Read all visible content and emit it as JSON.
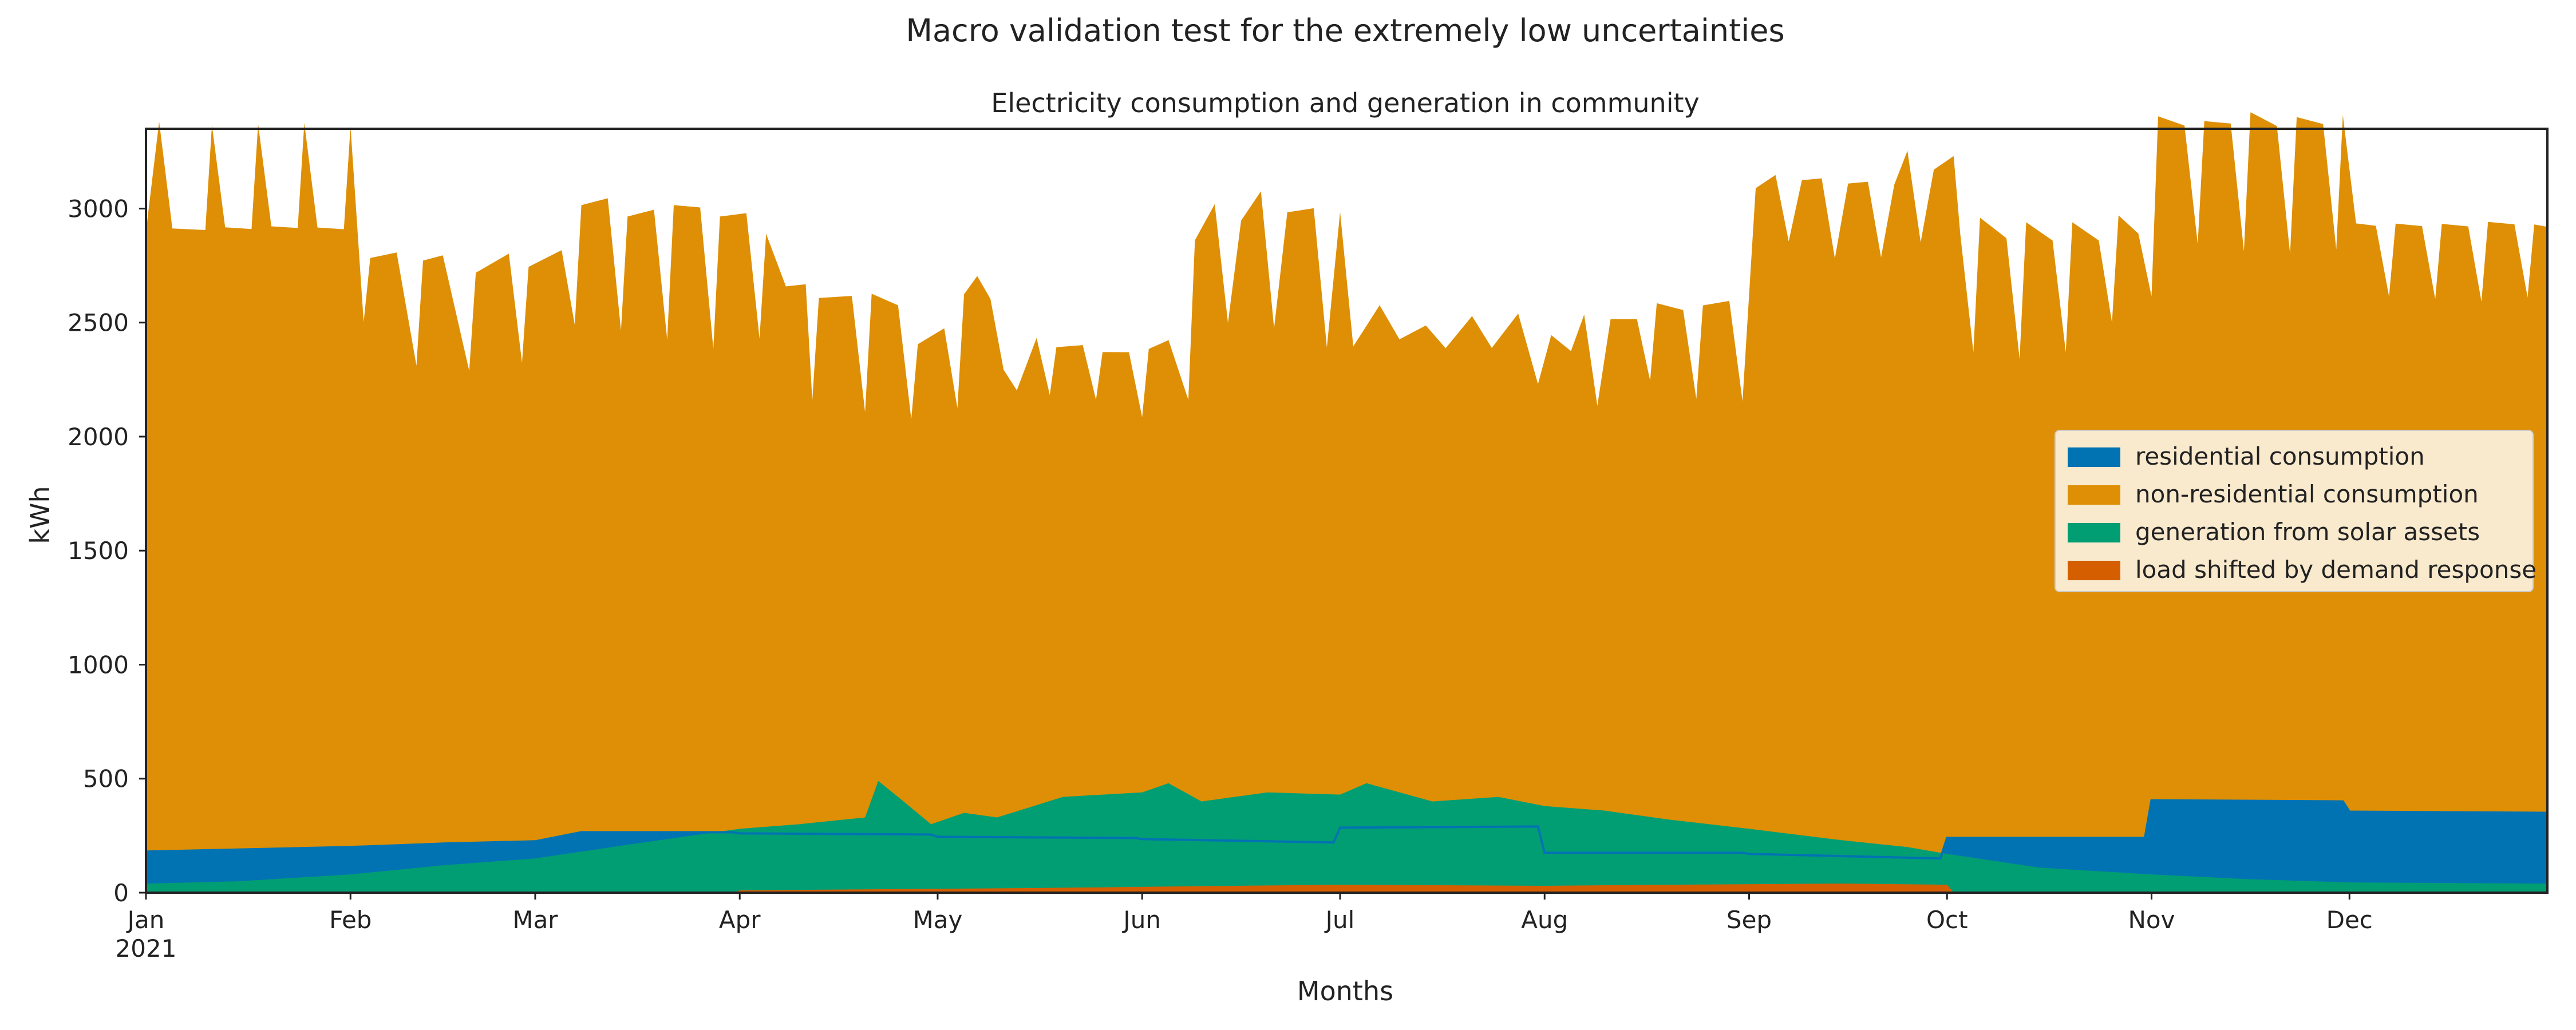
{
  "suptitle": "Macro validation test for the extremely low uncertainties",
  "chart_data": {
    "type": "area",
    "title": "Electricity consumption and generation in community",
    "xlabel": "Months",
    "ylabel": "kWh",
    "x_range": [
      "2021-01-01",
      "2021-12-31"
    ],
    "ylim": [
      0,
      3350
    ],
    "xticks": [
      {
        "date": "2021-01-01",
        "label": "Jan",
        "sublabel": "2021"
      },
      {
        "date": "2021-02-01",
        "label": "Feb"
      },
      {
        "date": "2021-03-01",
        "label": "Mar"
      },
      {
        "date": "2021-04-01",
        "label": "Apr"
      },
      {
        "date": "2021-05-01",
        "label": "May"
      },
      {
        "date": "2021-06-01",
        "label": "Jun"
      },
      {
        "date": "2021-07-01",
        "label": "Jul"
      },
      {
        "date": "2021-08-01",
        "label": "Aug"
      },
      {
        "date": "2021-09-01",
        "label": "Sep"
      },
      {
        "date": "2021-10-01",
        "label": "Oct"
      },
      {
        "date": "2021-11-01",
        "label": "Nov"
      },
      {
        "date": "2021-12-01",
        "label": "Dec"
      }
    ],
    "yticks": [
      0,
      500,
      1000,
      1500,
      2000,
      2500,
      3000
    ],
    "grid": false,
    "legend": {
      "placement": "right"
    },
    "series": [
      {
        "name": "residential consumption",
        "color": "#0173b2",
        "stacking": "base",
        "points": [
          [
            "2021-01-01",
            180
          ],
          [
            "2021-02-01",
            200
          ],
          [
            "2021-02-15",
            215
          ],
          [
            "2021-03-01",
            225
          ],
          [
            "2021-03-08",
            265
          ],
          [
            "2021-03-31",
            265
          ],
          [
            "2021-04-01",
            260
          ],
          [
            "2021-04-30",
            255
          ],
          [
            "2021-05-01",
            245
          ],
          [
            "2021-05-31",
            240
          ],
          [
            "2021-06-01",
            235
          ],
          [
            "2021-06-30",
            220
          ],
          [
            "2021-07-01",
            285
          ],
          [
            "2021-07-31",
            290
          ],
          [
            "2021-08-01",
            175
          ],
          [
            "2021-08-31",
            175
          ],
          [
            "2021-09-01",
            170
          ],
          [
            "2021-09-30",
            150
          ],
          [
            "2021-10-01",
            240
          ],
          [
            "2021-10-31",
            240
          ],
          [
            "2021-11-01",
            405
          ],
          [
            "2021-11-30",
            400
          ],
          [
            "2021-12-01",
            355
          ],
          [
            "2021-12-31",
            350
          ]
        ]
      },
      {
        "name": "non-residential consumption",
        "color": "#de8f05",
        "stacking": "total_on_top",
        "points": [
          [
            "2021-01-01",
            2720
          ],
          [
            "2021-01-03",
            3200
          ],
          [
            "2021-01-05",
            2730
          ],
          [
            "2021-01-10",
            2720
          ],
          [
            "2021-01-11",
            3180
          ],
          [
            "2021-01-13",
            2730
          ],
          [
            "2021-01-17",
            2720
          ],
          [
            "2021-01-18",
            3180
          ],
          [
            "2021-01-20",
            2730
          ],
          [
            "2021-01-24",
            2720
          ],
          [
            "2021-01-25",
            3180
          ],
          [
            "2021-01-27",
            2720
          ],
          [
            "2021-01-31",
            2710
          ],
          [
            "2021-02-01",
            3160
          ],
          [
            "2021-02-03",
            2300
          ],
          [
            "2021-02-04",
            2580
          ],
          [
            "2021-02-08",
            2600
          ],
          [
            "2021-02-11",
            2100
          ],
          [
            "2021-02-12",
            2560
          ],
          [
            "2021-02-15",
            2580
          ],
          [
            "2021-02-19",
            2070
          ],
          [
            "2021-02-20",
            2500
          ],
          [
            "2021-02-25",
            2580
          ],
          [
            "2021-02-27",
            2100
          ],
          [
            "2021-02-28",
            2520
          ],
          [
            "2021-03-05",
            2570
          ],
          [
            "2021-03-07",
            2230
          ],
          [
            "2021-03-08",
            2750
          ],
          [
            "2021-03-12",
            2780
          ],
          [
            "2021-03-14",
            2200
          ],
          [
            "2021-03-15",
            2700
          ],
          [
            "2021-03-19",
            2730
          ],
          [
            "2021-03-21",
            2160
          ],
          [
            "2021-03-22",
            2750
          ],
          [
            "2021-03-26",
            2740
          ],
          [
            "2021-03-28",
            2120
          ],
          [
            "2021-03-29",
            2700
          ],
          [
            "2021-04-02",
            2720
          ],
          [
            "2021-04-04",
            2170
          ],
          [
            "2021-04-05",
            2630
          ],
          [
            "2021-04-08",
            2400
          ],
          [
            "2021-04-11",
            2410
          ],
          [
            "2021-04-12",
            1900
          ],
          [
            "2021-04-13",
            2350
          ],
          [
            "2021-04-18",
            2360
          ],
          [
            "2021-04-20",
            1850
          ],
          [
            "2021-04-21",
            2370
          ],
          [
            "2021-04-25",
            2320
          ],
          [
            "2021-04-27",
            1820
          ],
          [
            "2021-04-28",
            2150
          ],
          [
            "2021-05-02",
            2230
          ],
          [
            "2021-05-04",
            1880
          ],
          [
            "2021-05-05",
            2380
          ],
          [
            "2021-05-07",
            2460
          ],
          [
            "2021-05-09",
            2360
          ],
          [
            "2021-05-11",
            2050
          ],
          [
            "2021-05-13",
            1960
          ],
          [
            "2021-05-16",
            2190
          ],
          [
            "2021-05-18",
            1940
          ],
          [
            "2021-05-19",
            2150
          ],
          [
            "2021-05-23",
            2160
          ],
          [
            "2021-05-25",
            1920
          ],
          [
            "2021-05-26",
            2130
          ],
          [
            "2021-05-30",
            2130
          ],
          [
            "2021-06-01",
            1850
          ],
          [
            "2021-06-02",
            2150
          ],
          [
            "2021-06-05",
            2190
          ],
          [
            "2021-06-08",
            1930
          ],
          [
            "2021-06-09",
            2630
          ],
          [
            "2021-06-12",
            2790
          ],
          [
            "2021-06-14",
            2270
          ],
          [
            "2021-06-16",
            2720
          ],
          [
            "2021-06-19",
            2850
          ],
          [
            "2021-06-21",
            2250
          ],
          [
            "2021-06-23",
            2760
          ],
          [
            "2021-06-27",
            2780
          ],
          [
            "2021-06-29",
            2170
          ],
          [
            "2021-07-01",
            2700
          ],
          [
            "2021-07-03",
            2110
          ],
          [
            "2021-07-07",
            2290
          ],
          [
            "2021-07-10",
            2140
          ],
          [
            "2021-07-14",
            2200
          ],
          [
            "2021-07-17",
            2100
          ],
          [
            "2021-07-21",
            2240
          ],
          [
            "2021-07-24",
            2100
          ],
          [
            "2021-07-28",
            2250
          ],
          [
            "2021-07-31",
            1940
          ],
          [
            "2021-08-02",
            2270
          ],
          [
            "2021-08-05",
            2200
          ],
          [
            "2021-08-07",
            2360
          ],
          [
            "2021-08-09",
            1960
          ],
          [
            "2021-08-11",
            2340
          ],
          [
            "2021-08-15",
            2340
          ],
          [
            "2021-08-17",
            2070
          ],
          [
            "2021-08-18",
            2410
          ],
          [
            "2021-08-22",
            2380
          ],
          [
            "2021-08-24",
            1990
          ],
          [
            "2021-08-25",
            2400
          ],
          [
            "2021-08-29",
            2420
          ],
          [
            "2021-08-31",
            1980
          ],
          [
            "2021-09-02",
            2920
          ],
          [
            "2021-09-05",
            2980
          ],
          [
            "2021-09-07",
            2690
          ],
          [
            "2021-09-09",
            2960
          ],
          [
            "2021-09-12",
            2970
          ],
          [
            "2021-09-14",
            2620
          ],
          [
            "2021-09-16",
            2950
          ],
          [
            "2021-09-19",
            2960
          ],
          [
            "2021-09-21",
            2630
          ],
          [
            "2021-09-23",
            2950
          ],
          [
            "2021-09-25",
            3100
          ],
          [
            "2021-09-27",
            2700
          ],
          [
            "2021-09-29",
            3020
          ],
          [
            "2021-10-02",
            2990
          ],
          [
            "2021-10-03",
            2650
          ],
          [
            "2021-10-05",
            2130
          ],
          [
            "2021-10-06",
            2720
          ],
          [
            "2021-10-10",
            2630
          ],
          [
            "2021-10-12",
            2100
          ],
          [
            "2021-10-13",
            2700
          ],
          [
            "2021-10-17",
            2620
          ],
          [
            "2021-10-19",
            2130
          ],
          [
            "2021-10-20",
            2700
          ],
          [
            "2021-10-24",
            2620
          ],
          [
            "2021-10-26",
            2260
          ],
          [
            "2021-10-27",
            2730
          ],
          [
            "2021-10-30",
            2650
          ],
          [
            "2021-11-01",
            2210
          ],
          [
            "2021-11-02",
            3000
          ],
          [
            "2021-11-06",
            2960
          ],
          [
            "2021-11-08",
            2440
          ],
          [
            "2021-11-09",
            2980
          ],
          [
            "2021-11-13",
            2970
          ],
          [
            "2021-11-15",
            2410
          ],
          [
            "2021-11-16",
            3020
          ],
          [
            "2021-11-20",
            2960
          ],
          [
            "2021-11-22",
            2400
          ],
          [
            "2021-11-23",
            3000
          ],
          [
            "2021-11-27",
            2970
          ],
          [
            "2021-11-29",
            2420
          ],
          [
            "2021-11-30",
            3010
          ],
          [
            "2021-12-02",
            2580
          ],
          [
            "2021-12-05",
            2570
          ],
          [
            "2021-12-07",
            2260
          ],
          [
            "2021-12-08",
            2580
          ],
          [
            "2021-12-12",
            2570
          ],
          [
            "2021-12-14",
            2250
          ],
          [
            "2021-12-15",
            2580
          ],
          [
            "2021-12-19",
            2570
          ],
          [
            "2021-12-21",
            2240
          ],
          [
            "2021-12-22",
            2590
          ],
          [
            "2021-12-26",
            2580
          ],
          [
            "2021-12-28",
            2260
          ],
          [
            "2021-12-29",
            2580
          ],
          [
            "2021-12-31",
            2570
          ]
        ]
      },
      {
        "name": "generation from solar assets",
        "color": "#029e73",
        "stacking": "from_zero",
        "points": [
          [
            "2021-01-01",
            40
          ],
          [
            "2021-01-15",
            50
          ],
          [
            "2021-02-01",
            80
          ],
          [
            "2021-02-15",
            120
          ],
          [
            "2021-03-01",
            150
          ],
          [
            "2021-03-15",
            210
          ],
          [
            "2021-04-01",
            280
          ],
          [
            "2021-04-10",
            300
          ],
          [
            "2021-04-20",
            330
          ],
          [
            "2021-04-22",
            490
          ],
          [
            "2021-04-25",
            420
          ],
          [
            "2021-04-30",
            300
          ],
          [
            "2021-05-05",
            350
          ],
          [
            "2021-05-10",
            330
          ],
          [
            "2021-05-20",
            420
          ],
          [
            "2021-06-01",
            440
          ],
          [
            "2021-06-05",
            480
          ],
          [
            "2021-06-10",
            400
          ],
          [
            "2021-06-20",
            440
          ],
          [
            "2021-07-01",
            430
          ],
          [
            "2021-07-05",
            480
          ],
          [
            "2021-07-15",
            400
          ],
          [
            "2021-07-25",
            420
          ],
          [
            "2021-08-01",
            380
          ],
          [
            "2021-08-10",
            360
          ],
          [
            "2021-08-20",
            320
          ],
          [
            "2021-09-01",
            280
          ],
          [
            "2021-09-15",
            230
          ],
          [
            "2021-09-25",
            200
          ],
          [
            "2021-10-01",
            170
          ],
          [
            "2021-10-15",
            110
          ],
          [
            "2021-11-01",
            80
          ],
          [
            "2021-11-15",
            60
          ],
          [
            "2021-12-01",
            45
          ],
          [
            "2021-12-31",
            40
          ]
        ]
      },
      {
        "name": "load shifted by demand response",
        "color": "#d55e00",
        "stacking": "from_zero",
        "points": [
          [
            "2021-01-01",
            0
          ],
          [
            "2021-03-31",
            0
          ],
          [
            "2021-04-01",
            10
          ],
          [
            "2021-05-15",
            20
          ],
          [
            "2021-06-15",
            30
          ],
          [
            "2021-07-01",
            35
          ],
          [
            "2021-08-01",
            30
          ],
          [
            "2021-08-20",
            35
          ],
          [
            "2021-09-15",
            40
          ],
          [
            "2021-10-01",
            35
          ],
          [
            "2021-10-02",
            0
          ],
          [
            "2021-12-31",
            0
          ]
        ]
      }
    ]
  }
}
